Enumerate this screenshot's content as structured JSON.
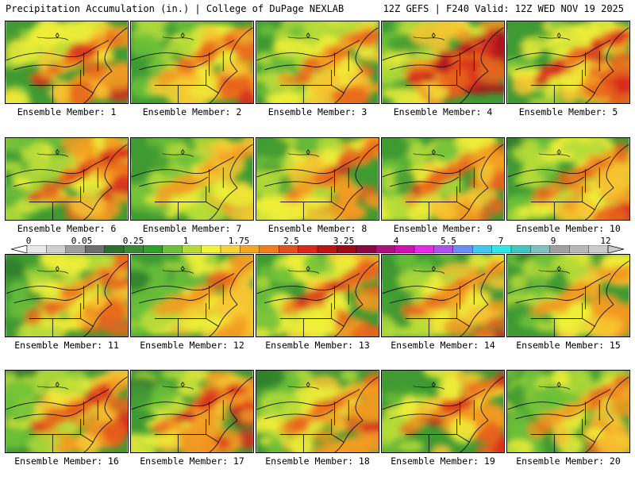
{
  "header": {
    "title": "Precipitation Accumulation (in.) | College of DuPage NEXLAB",
    "run_info": "12Z GEFS | F240 Valid: 12Z WED NOV 19 2025"
  },
  "member_label_prefix": "Ensemble Member:",
  "members": [
    {
      "label": "Ensemble Member: 1",
      "intensity": 0.65
    },
    {
      "label": "Ensemble Member: 2",
      "intensity": 0.55
    },
    {
      "label": "Ensemble Member: 3",
      "intensity": 0.45
    },
    {
      "label": "Ensemble Member: 4",
      "intensity": 0.95
    },
    {
      "label": "Ensemble Member: 5",
      "intensity": 0.7
    },
    {
      "label": "Ensemble Member: 6",
      "intensity": 0.7
    },
    {
      "label": "Ensemble Member: 7",
      "intensity": 0.35
    },
    {
      "label": "Ensemble Member: 8",
      "intensity": 0.6
    },
    {
      "label": "Ensemble Member: 9",
      "intensity": 0.55
    },
    {
      "label": "Ensemble Member: 10",
      "intensity": 0.55
    },
    {
      "label": "Ensemble Member: 11",
      "intensity": 0.55
    },
    {
      "label": "Ensemble Member: 12",
      "intensity": 0.4
    },
    {
      "label": "Ensemble Member: 13",
      "intensity": 0.65
    },
    {
      "label": "Ensemble Member: 14",
      "intensity": 0.5
    },
    {
      "label": "Ensemble Member: 15",
      "intensity": 0.35
    },
    {
      "label": "Ensemble Member: 16",
      "intensity": 0.7
    },
    {
      "label": "Ensemble Member: 17",
      "intensity": 0.7
    },
    {
      "label": "Ensemble Member: 18",
      "intensity": 0.55
    },
    {
      "label": "Ensemble Member: 19",
      "intensity": 0.6
    },
    {
      "label": "Ensemble Member: 20",
      "intensity": 0.45
    }
  ],
  "legend": {
    "ticks": [
      "0",
      "0.05",
      "0.25",
      "1",
      "1.75",
      "2.5",
      "3.25",
      "4",
      "5.5",
      "7",
      "9",
      "12"
    ],
    "colors": [
      "#e8e8e8",
      "#cfcfcf",
      "#9e9e9e",
      "#6e6e6e",
      "#2f6f2f",
      "#3a8a35",
      "#2fa02a",
      "#6cc23a",
      "#b5dc3a",
      "#f2f23a",
      "#f7d23a",
      "#f5a623",
      "#f07e1c",
      "#e6501c",
      "#d82a1c",
      "#c01414",
      "#a00a18",
      "#8a0a40",
      "#b0107a",
      "#d010b0",
      "#ea28e8",
      "#b050f0",
      "#6a8cf5",
      "#40c8f0",
      "#30e8e8",
      "#40c8c0",
      "#80c0c0",
      "#a0a0a0",
      "#b8b8b8",
      "#cccccc"
    ],
    "unit": "in."
  }
}
